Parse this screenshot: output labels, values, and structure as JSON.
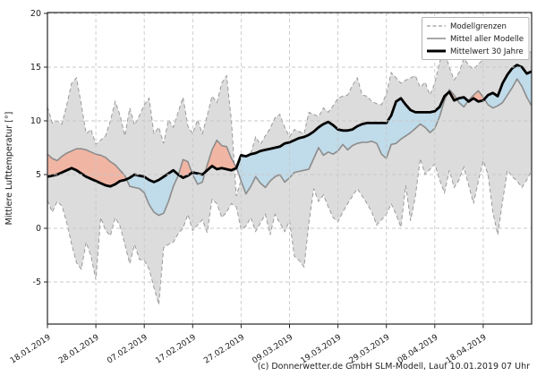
{
  "chart_data": {
    "type": "line",
    "title": "",
    "ylabel": "Mittlere Lufttemperatur [°]",
    "xlabel": "",
    "footer": "(c) Donnerwetter.de GmbH SLM-Modell, Lauf 10.01.2019 07 Uhr",
    "x_tick_labels": [
      "18.01.2019",
      "28.01.2019",
      "07.02.2019",
      "17.02.2019",
      "27.02.2019",
      "09.03.2019",
      "19.03.2019",
      "29.03.2019",
      "08.04.2019",
      "18.04.2019"
    ],
    "x_tick_days": [
      0,
      10,
      20,
      30,
      40,
      50,
      60,
      70,
      80,
      90
    ],
    "x_day_span": 100,
    "y_ticks": [
      -5,
      0,
      5,
      10,
      15,
      20
    ],
    "ylim": [
      -9,
      20.1
    ],
    "grid": true,
    "legend_position": "upper right",
    "legend": [
      {
        "label": "Modellgrenzen",
        "style": "dashed-gray"
      },
      {
        "label": "Mittel aller Modelle",
        "style": "solid-gray"
      },
      {
        "label": "Mittelwert 30 Jahre",
        "style": "thick-black"
      }
    ],
    "series": [
      {
        "name": "model_upper_bound",
        "values": [
          11.3,
          9.8,
          10.0,
          9.7,
          11.5,
          13.5,
          14.0,
          11.5,
          8.8,
          9.2,
          7.8,
          8.2,
          8.6,
          10.0,
          11.8,
          10.5,
          8.6,
          11.2,
          9.6,
          10.5,
          11.5,
          12.1,
          8.8,
          9.4,
          7.9,
          10.1,
          9.4,
          10.8,
          12.2,
          9.5,
          8.8,
          10.1,
          8.8,
          10.5,
          12.3,
          11.7,
          13.5,
          14.2,
          10.0,
          3.0,
          4.5,
          5.7,
          7.0,
          8.5,
          7.8,
          8.6,
          9.3,
          10.3,
          10.6,
          9.4,
          8.5,
          9.2,
          9.0,
          8.8,
          10.8,
          10.6,
          10.4,
          11.2,
          10.8,
          11.4,
          12.1,
          12.3,
          12.4,
          13.3,
          14.0,
          12.4,
          12.3,
          11.8,
          11.6,
          11.5,
          12.5,
          14.5,
          14.0,
          13.5,
          13.8,
          14.0,
          14.2,
          13.1,
          13.6,
          12.4,
          13.5,
          15.5,
          16.4,
          15.0,
          13.8,
          14.5,
          15.8,
          15.2,
          14.8,
          15.3,
          15.7,
          16.9,
          16.5,
          16.0,
          16.2,
          16.3,
          16.5,
          17.0,
          17.3,
          16.8,
          16.3
        ]
      },
      {
        "name": "model_lower_bound",
        "values": [
          2.6,
          1.5,
          2.5,
          2.1,
          0.5,
          -1.5,
          -3.2,
          -3.8,
          -1.3,
          -2.6,
          -4.8,
          1.0,
          -0.2,
          -0.7,
          1.0,
          0.2,
          -1.5,
          -3.3,
          -1.5,
          -2.9,
          -3.0,
          -3.8,
          -5.5,
          -7.1,
          -1.8,
          -1.5,
          -1.3,
          -0.5,
          0.0,
          1.3,
          -0.2,
          0.3,
          0.8,
          -0.4,
          2.7,
          2.3,
          1.0,
          1.5,
          2.3,
          2.0,
          -0.1,
          0.2,
          1.0,
          -0.3,
          0.5,
          1.3,
          -0.6,
          1.3,
          0.5,
          -0.3,
          0.7,
          -2.6,
          -3.0,
          -3.6,
          0.5,
          3.7,
          2.5,
          3.1,
          2.0,
          1.0,
          0.6,
          1.5,
          2.3,
          3.0,
          3.7,
          3.0,
          2.3,
          1.5,
          0.3,
          0.8,
          1.3,
          2.3,
          1.3,
          0.1,
          4.0,
          0.7,
          3.0,
          6.5,
          5.0,
          5.5,
          6.0,
          4.5,
          3.3,
          5.4,
          3.8,
          4.5,
          5.7,
          4.0,
          2.3,
          4.4,
          6.3,
          5.0,
          1.5,
          -0.6,
          2.5,
          5.4,
          4.8,
          4.4,
          3.8,
          4.5,
          5.4
        ]
      },
      {
        "name": "model_mean",
        "values": [
          6.9,
          6.5,
          6.3,
          6.7,
          7.0,
          7.2,
          7.4,
          7.4,
          7.3,
          7.1,
          6.9,
          6.8,
          6.6,
          6.2,
          5.9,
          5.4,
          4.9,
          3.9,
          3.8,
          3.7,
          3.3,
          2.2,
          1.5,
          1.2,
          1.4,
          2.5,
          3.9,
          4.9,
          6.4,
          6.2,
          5.0,
          4.1,
          4.3,
          5.9,
          7.3,
          8.2,
          7.7,
          7.6,
          6.5,
          5.7,
          4.4,
          3.2,
          3.9,
          4.8,
          4.2,
          3.8,
          4.4,
          4.8,
          5.0,
          4.3,
          4.7,
          5.2,
          5.3,
          5.4,
          5.5,
          6.5,
          7.5,
          6.8,
          7.1,
          6.9,
          7.2,
          7.8,
          7.3,
          7.7,
          7.9,
          8.0,
          8.0,
          8.1,
          7.9,
          6.9,
          6.5,
          7.8,
          7.9,
          8.3,
          8.6,
          8.9,
          9.3,
          9.7,
          9.4,
          8.9,
          9.3,
          10.4,
          11.9,
          12.9,
          12.4,
          11.7,
          11.3,
          11.9,
          12.4,
          12.8,
          12.2,
          11.5,
          11.2,
          11.4,
          11.7,
          12.4,
          13.1,
          13.9,
          13.2,
          12.2,
          11.4
        ]
      },
      {
        "name": "climate_mean_30y",
        "values": [
          4.8,
          4.9,
          5.0,
          5.2,
          5.4,
          5.6,
          5.4,
          5.1,
          4.8,
          4.6,
          4.4,
          4.2,
          4.0,
          3.9,
          4.1,
          4.4,
          4.5,
          4.7,
          5.0,
          4.9,
          4.8,
          4.5,
          4.3,
          4.5,
          4.8,
          5.1,
          5.4,
          5.0,
          4.7,
          4.9,
          5.2,
          5.1,
          5.0,
          5.4,
          5.8,
          5.5,
          5.6,
          5.5,
          5.4,
          5.6,
          6.8,
          6.7,
          6.9,
          7.0,
          7.2,
          7.3,
          7.4,
          7.5,
          7.6,
          7.9,
          8.0,
          8.2,
          8.4,
          8.5,
          8.7,
          9.0,
          9.4,
          9.7,
          9.9,
          9.6,
          9.2,
          9.1,
          9.1,
          9.2,
          9.5,
          9.7,
          9.8,
          9.8,
          9.8,
          9.8,
          9.8,
          10.5,
          11.8,
          12.1,
          11.5,
          11.0,
          10.8,
          10.8,
          10.8,
          10.8,
          10.9,
          11.3,
          12.3,
          12.7,
          11.9,
          12.1,
          12.2,
          11.8,
          12.1,
          11.8,
          11.9,
          12.4,
          12.6,
          12.3,
          13.5,
          14.3,
          14.9,
          15.2,
          15.0,
          14.4,
          14.6
        ]
      }
    ],
    "colors": {
      "band_fill": "#dcdcdc",
      "band_edge": "#9a9a9a",
      "warmer_fill": "#f1b5a4",
      "colder_fill": "#c0dbe9",
      "model_mean_line": "#8c8c8c",
      "climate_line": "#000000",
      "grid": "#c8c8c8",
      "frame": "#262626",
      "text": "#1a1a1a"
    }
  }
}
